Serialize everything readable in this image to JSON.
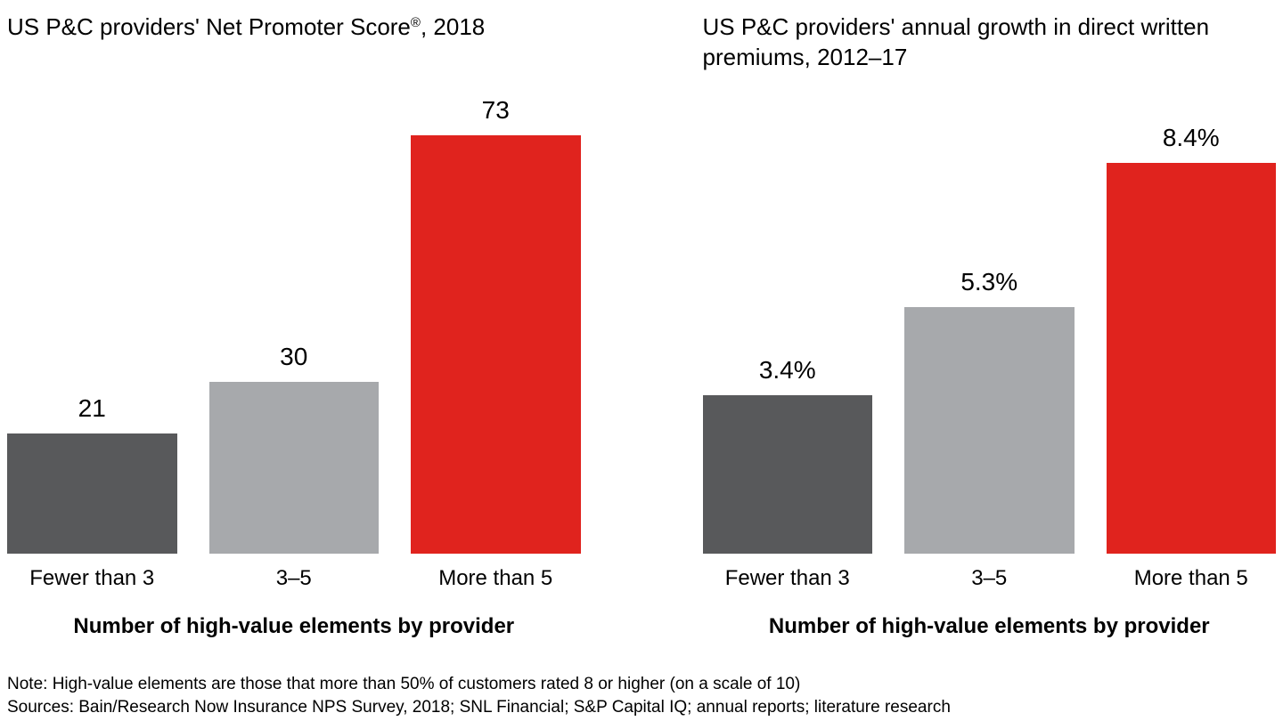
{
  "colors": {
    "dark_gray": "#58595B",
    "light_gray": "#A7A9AC",
    "red": "#E0231E",
    "text": "#000000",
    "background": "#FFFFFF"
  },
  "chart_data": [
    {
      "type": "bar",
      "title": "US P&C providers' Net Promoter Score®, 2018",
      "title_parts": [
        "US P&C providers' Net Promoter Score",
        "®",
        ", 2018"
      ],
      "categories": [
        "Fewer than 3",
        "3–5",
        "More than 5"
      ],
      "values": [
        21,
        30,
        73
      ],
      "value_labels": [
        "21",
        "30",
        "73"
      ],
      "xlabel": "Number of high-value elements by provider",
      "ylim": [
        0,
        73
      ],
      "bar_colors": [
        "#58595B",
        "#A7A9AC",
        "#E0231E"
      ],
      "grid": false,
      "legend": "none"
    },
    {
      "type": "bar",
      "title": "US P&C providers' annual growth in direct written premiums, 2012–17",
      "title_parts": [
        "US P&C providers' annual growth in direct written premiums, 2012–17",
        "",
        ""
      ],
      "categories": [
        "Fewer than 3",
        "3–5",
        "More than 5"
      ],
      "values": [
        3.4,
        5.3,
        8.4
      ],
      "value_labels": [
        "3.4%",
        "5.3%",
        "8.4%"
      ],
      "xlabel": "Number of high-value elements by provider",
      "ylim": [
        0,
        9
      ],
      "bar_colors": [
        "#58595B",
        "#A7A9AC",
        "#E0231E"
      ],
      "grid": false,
      "legend": "none"
    }
  ],
  "footer": {
    "note": "Note: High-value elements are those that more than 50% of customers rated 8 or higher (on a scale of 10)",
    "sources": "Sources: Bain/Research Now Insurance NPS Survey, 2018; SNL Financial; S&P Capital IQ; annual reports; literature research"
  }
}
